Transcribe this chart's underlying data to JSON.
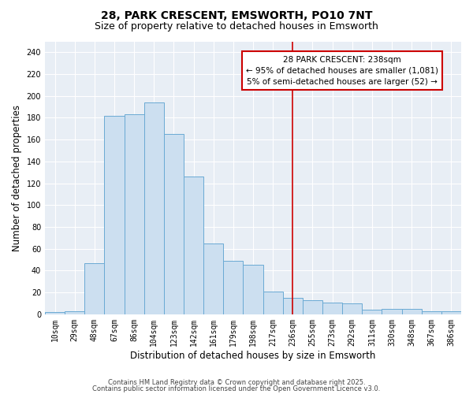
{
  "title_line1": "28, PARK CRESCENT, EMSWORTH, PO10 7NT",
  "title_line2": "Size of property relative to detached houses in Emsworth",
  "xlabel": "Distribution of detached houses by size in Emsworth",
  "ylabel": "Number of detached properties",
  "categories": [
    "10sqm",
    "29sqm",
    "48sqm",
    "67sqm",
    "86sqm",
    "104sqm",
    "123sqm",
    "142sqm",
    "161sqm",
    "179sqm",
    "198sqm",
    "217sqm",
    "236sqm",
    "255sqm",
    "273sqm",
    "292sqm",
    "311sqm",
    "330sqm",
    "348sqm",
    "367sqm",
    "386sqm"
  ],
  "values": [
    2,
    3,
    47,
    182,
    183,
    194,
    165,
    126,
    65,
    49,
    45,
    21,
    15,
    13,
    11,
    10,
    4,
    5,
    5,
    3,
    3
  ],
  "bar_color": "#ccdff0",
  "bar_edge_color": "#6aaad4",
  "plot_bg_color": "#e8eef5",
  "fig_bg_color": "#ffffff",
  "grid_color": "#ffffff",
  "vline_x": 12,
  "vline_color": "#cc0000",
  "annotation_line1": "28 PARK CRESCENT: 238sqm",
  "annotation_line2": "← 95% of detached houses are smaller (1,081)",
  "annotation_line3": "5% of semi-detached houses are larger (52) →",
  "annotation_box_color": "#ffffff",
  "annotation_box_edge_color": "#cc0000",
  "ylim": [
    0,
    250
  ],
  "yticks": [
    0,
    20,
    40,
    60,
    80,
    100,
    120,
    140,
    160,
    180,
    200,
    220,
    240
  ],
  "footer_line1": "Contains HM Land Registry data © Crown copyright and database right 2025.",
  "footer_line2": "Contains public sector information licensed under the Open Government Licence v3.0.",
  "title_fontsize": 10,
  "subtitle_fontsize": 9,
  "xlabel_fontsize": 8.5,
  "ylabel_fontsize": 8.5,
  "tick_fontsize": 7,
  "annotation_fontsize": 7.5,
  "footer_fontsize": 6
}
